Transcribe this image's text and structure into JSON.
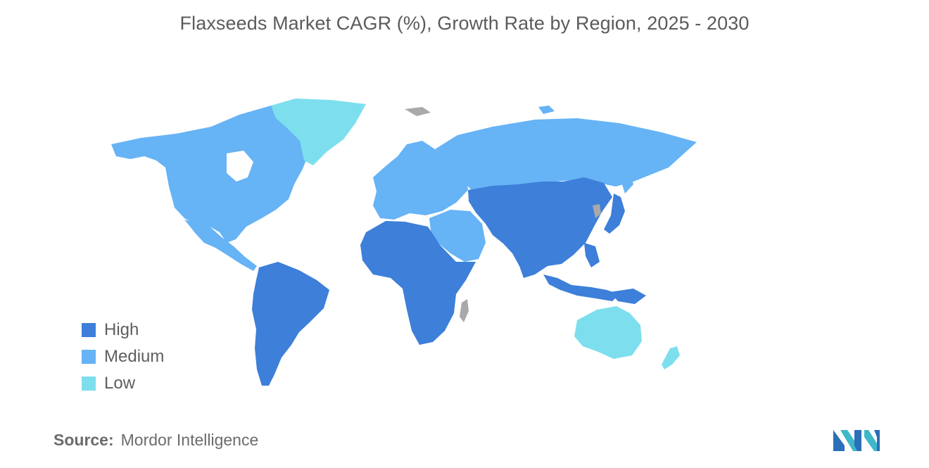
{
  "title": "Flaxseeds Market CAGR (%), Growth Rate by Region, 2025 - 2030",
  "legend": [
    {
      "label": "High",
      "color": "#3d7fd9"
    },
    {
      "label": "Medium",
      "color": "#66b3f5"
    },
    {
      "label": "Low",
      "color": "#7ddfee"
    }
  ],
  "regions": [
    {
      "name": "North America",
      "level": "Medium"
    },
    {
      "name": "Greenland",
      "level": "Low"
    },
    {
      "name": "Mexico & Central America",
      "level": "Medium"
    },
    {
      "name": "South America",
      "level": "High"
    },
    {
      "name": "Europe",
      "level": "Medium"
    },
    {
      "name": "Russia",
      "level": "Medium"
    },
    {
      "name": "Middle East",
      "level": "Medium"
    },
    {
      "name": "Africa",
      "level": "High"
    },
    {
      "name": "Asia",
      "level": "High"
    },
    {
      "name": "Japan",
      "level": "High"
    },
    {
      "name": "Southeast Asia",
      "level": "High"
    },
    {
      "name": "Australia",
      "level": "Low"
    },
    {
      "name": "New Zealand",
      "level": "Low"
    }
  ],
  "no_data_color": "#a9a9a9",
  "source": {
    "key": "Source:",
    "value": "Mordor Intelligence"
  },
  "logo": {
    "name": "Mordor Intelligence logo",
    "colors": [
      "#2a6fb8",
      "#3fb8c9"
    ]
  }
}
